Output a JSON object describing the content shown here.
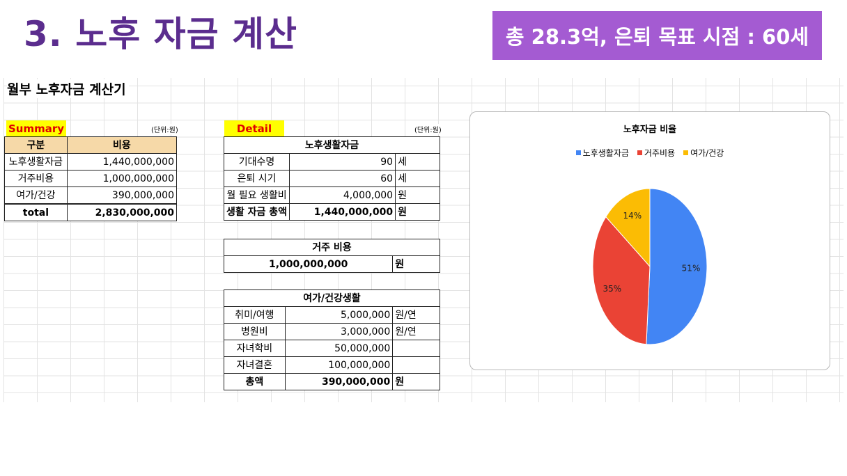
{
  "slide": {
    "title": "3. 노후 자금 계산",
    "banner": "총 28.3억, 은퇴 목표 시점 : 60세"
  },
  "sheet": {
    "title": "월부 노후자금 계산기",
    "summary": {
      "tag": "Summary",
      "unit": "(단위:원)",
      "header": [
        "구분",
        "비용"
      ],
      "rows": [
        {
          "label": "노후생활자금",
          "value": "1,440,000,000"
        },
        {
          "label": "거주비용",
          "value": "1,000,000,000"
        },
        {
          "label": "여가/건강",
          "value": "390,000,000"
        }
      ],
      "total": {
        "label": "total",
        "value": "2,830,000,000"
      }
    },
    "detail": {
      "tag": "Detail",
      "unit": "(단위:원)",
      "living": {
        "title": "노후생활자금",
        "rows": [
          {
            "label": "기대수명",
            "value": "90",
            "unit": "세"
          },
          {
            "label": "은퇴 시기",
            "value": "60",
            "unit": "세"
          },
          {
            "label": "월 필요 생활비",
            "value": "4,000,000",
            "unit": "원"
          }
        ],
        "total": {
          "label": "생활 자금 총액",
          "value": "1,440,000,000",
          "unit": "원"
        }
      },
      "housing": {
        "title": "거주 비용",
        "value": "1,000,000,000",
        "unit": "원"
      },
      "leisure": {
        "title": "여가/건강생활",
        "rows": [
          {
            "label": "취미/여행",
            "value": "5,000,000",
            "unit": "원/연"
          },
          {
            "label": "병원비",
            "value": "3,000,000",
            "unit": "원/연"
          },
          {
            "label": "자녀학비",
            "value": "50,000,000",
            "unit": ""
          },
          {
            "label": "자녀결혼",
            "value": "100,000,000",
            "unit": ""
          }
        ],
        "total": {
          "label": "총액",
          "value": "390,000,000",
          "unit": "원"
        }
      }
    }
  },
  "chart_data": {
    "type": "pie",
    "title": "노후자금 비율",
    "categories": [
      "노후생활자금",
      "거주비용",
      "여가/건강"
    ],
    "values": [
      51,
      35,
      14
    ],
    "labels": [
      "51%",
      "35%",
      "14%"
    ],
    "colors": [
      "#4285f4",
      "#ea4335",
      "#fbbc04"
    ],
    "legend": "top"
  }
}
